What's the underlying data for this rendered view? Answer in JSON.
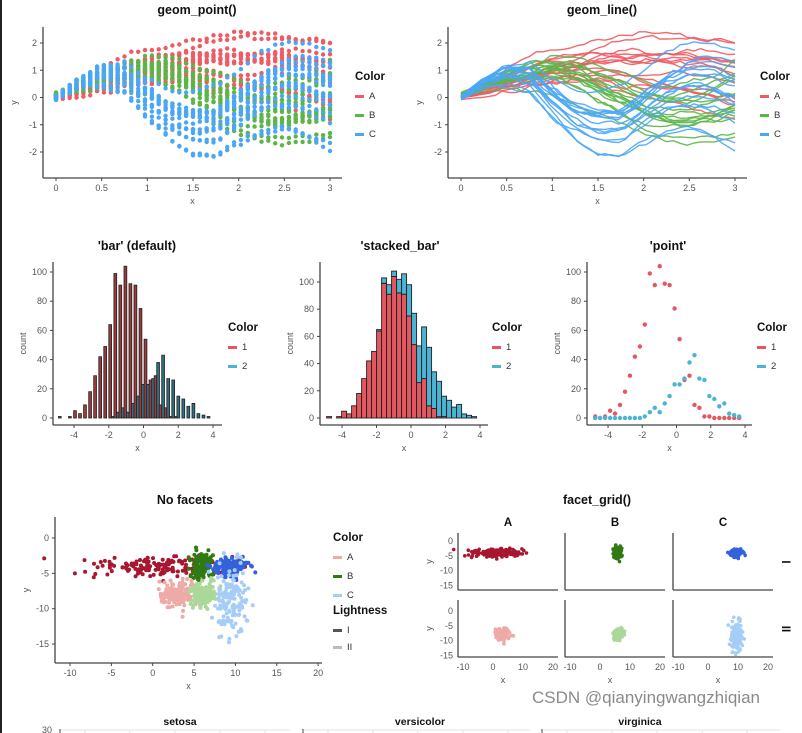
{
  "watermark": "CSDN @qianyingwangzhiqian",
  "colors": {
    "A": "#ef5a63",
    "B": "#5cb548",
    "C": "#4aa6f7",
    "hist1": "#e45760",
    "hist2": "#4bb3d3",
    "A_I": "#a8162f",
    "B_I": "#2f7a12",
    "C_I": "#3461dc",
    "A_II": "#eeaaa6",
    "B_II": "#a9d899",
    "C_II": "#a6cdf7"
  },
  "chart_data": [
    {
      "type": "scatter",
      "title": "geom_point()",
      "xlabel": "x",
      "ylabel": "y",
      "xlim": [
        -0.15,
        3.15
      ],
      "ylim": [
        -2.9,
        2.6
      ],
      "x_ticks": [
        "0",
        "0.5",
        "1",
        "1.5",
        "2",
        "2.5",
        "3"
      ],
      "y_ticks": [
        "-2",
        "-1",
        "0",
        "1",
        "2"
      ],
      "legend": {
        "title": "Color",
        "entries": [
          "A",
          "B",
          "C"
        ],
        "position": "right"
      },
      "grid": false,
      "x_step": 0.075,
      "lines_per_group": 15,
      "series": [
        {
          "name": "A",
          "trend_x": [
            0,
            0.25,
            0.5,
            0.75,
            1,
            1.25,
            1.5,
            1.75,
            2,
            2.25,
            2.5,
            2.75,
            3
          ],
          "trend_y": [
            0,
            0.2,
            0.4,
            0.6,
            0.8,
            0.9,
            1.0,
            1.0,
            0.9,
            0.8,
            0.7,
            0.6,
            0.4
          ]
        },
        {
          "name": "B",
          "trend_x": [
            0,
            0.25,
            0.5,
            0.75,
            1,
            1.25,
            1.5,
            1.75,
            2,
            2.25,
            2.5,
            2.75,
            3
          ],
          "trend_y": [
            0.1,
            0.4,
            0.7,
            0.9,
            1.0,
            0.8,
            0.4,
            0.0,
            -0.4,
            -0.6,
            -0.6,
            -0.5,
            -0.2
          ]
        },
        {
          "name": "C",
          "trend_x": [
            0,
            0.25,
            0.5,
            0.75,
            1,
            1.25,
            1.5,
            1.75,
            2,
            2.25,
            2.5,
            2.75,
            3
          ],
          "trend_y": [
            0,
            0.6,
            0.9,
            0.8,
            0.0,
            -0.7,
            -1.0,
            -1.0,
            -0.4,
            0.2,
            0.5,
            0.4,
            0.1
          ]
        }
      ]
    },
    {
      "type": "line",
      "title": "geom_line()",
      "xlabel": "x",
      "ylabel": "y",
      "xlim": [
        -0.15,
        3.15
      ],
      "ylim": [
        -2.9,
        2.6
      ],
      "x_ticks": [
        "0",
        "0.5",
        "1",
        "1.5",
        "2",
        "2.5",
        "3"
      ],
      "y_ticks": [
        "-2",
        "-1",
        "0",
        "1",
        "2"
      ],
      "legend": {
        "title": "Color",
        "entries": [
          "A",
          "B",
          "C"
        ],
        "position": "right"
      },
      "grid": false,
      "note_same_data_as": "geom_point()"
    },
    {
      "type": "bar",
      "title": "'bar' (default)",
      "xlabel": "x",
      "ylabel": "count",
      "xlim": [
        -5.2,
        4.2
      ],
      "ylim": [
        0,
        110
      ],
      "x_ticks": [
        "-4",
        "-2",
        "0",
        "2",
        "4"
      ],
      "y_ticks": [
        "0",
        "20",
        "40",
        "60",
        "80",
        "100"
      ],
      "legend": {
        "title": "Color",
        "entries": [
          "1",
          "2"
        ],
        "position": "right"
      },
      "bin_centers": [
        -4.75,
        -4.46,
        -4.17,
        -3.88,
        -3.59,
        -3.3,
        -3.01,
        -2.72,
        -2.43,
        -2.14,
        -1.85,
        -1.56,
        -1.27,
        -0.98,
        -0.69,
        -0.4,
        -0.11,
        0.18,
        0.47,
        0.76,
        1.05,
        1.34,
        1.63,
        1.92,
        2.21,
        2.5,
        2.79,
        3.08,
        3.37,
        3.66
      ],
      "series": [
        {
          "name": "1",
          "values": [
            1,
            0,
            1,
            5,
            3,
            9,
            18,
            29,
            42,
            49,
            64,
            99,
            91,
            104,
            92,
            91,
            75,
            54,
            26,
            29,
            9,
            7,
            1,
            1,
            0,
            0,
            0,
            0,
            0,
            0
          ]
        },
        {
          "name": "2",
          "values": [
            0,
            0,
            0,
            0,
            0,
            0,
            0,
            0,
            0,
            0,
            1,
            4,
            7,
            4,
            10,
            15,
            23,
            23,
            27,
            38,
            43,
            27,
            26,
            15,
            13,
            8,
            10,
            3,
            2,
            1
          ]
        }
      ]
    },
    {
      "type": "bar",
      "title": "'stacked_bar'",
      "xlabel": "x",
      "ylabel": "count",
      "xlim": [
        -5.2,
        4.2
      ],
      "ylim": [
        0,
        113
      ],
      "x_ticks": [
        "-4",
        "-2",
        "0",
        "2",
        "4"
      ],
      "y_ticks": [
        "0",
        "20",
        "40",
        "60",
        "80",
        "100"
      ],
      "legend": {
        "title": "Color",
        "entries": [
          "1",
          "2"
        ],
        "position": "right"
      },
      "stacked": true
    },
    {
      "type": "scatter",
      "title": "'point'",
      "xlabel": "x",
      "ylabel": "count",
      "xlim": [
        -5.2,
        4.2
      ],
      "ylim": [
        0,
        110
      ],
      "x_ticks": [
        "-4",
        "-2",
        "0",
        "2",
        "4"
      ],
      "y_ticks": [
        "0",
        "20",
        "40",
        "60",
        "80",
        "100"
      ],
      "legend": {
        "title": "Color",
        "entries": [
          "1",
          "2"
        ],
        "position": "right"
      }
    },
    {
      "type": "scatter",
      "title": "No facets",
      "xlabel": "x",
      "ylabel": "y",
      "xlim": [
        -12,
        21
      ],
      "ylim": [
        -17,
        2.5
      ],
      "x_ticks": [
        "-10",
        "-5",
        "0",
        "5",
        "10",
        "15",
        "20"
      ],
      "y_ticks": [
        "0",
        "-5",
        "-10",
        "-15"
      ],
      "legend": {
        "title": "Color",
        "entries": [
          "A",
          "B",
          "C"
        ],
        "title2": "Lightness",
        "entries2": [
          "I",
          "II"
        ],
        "position": "right"
      },
      "points_per_group": 150,
      "series": [
        {
          "color": "A",
          "lightness": "I",
          "center": [
            0,
            -4
          ],
          "sd": [
            4.5,
            0.8
          ]
        },
        {
          "color": "B",
          "lightness": "I",
          "center": [
            6,
            -4
          ],
          "sd": [
            0.7,
            1.0
          ]
        },
        {
          "color": "C",
          "lightness": "I",
          "center": [
            9.5,
            -4
          ],
          "sd": [
            1.0,
            0.6
          ]
        },
        {
          "color": "A",
          "lightness": "II",
          "center": [
            3,
            -8
          ],
          "sd": [
            1.1,
            0.9
          ]
        },
        {
          "color": "B",
          "lightness": "II",
          "center": [
            6,
            -8
          ],
          "sd": [
            0.8,
            0.8
          ]
        },
        {
          "color": "C",
          "lightness": "II",
          "center": [
            9.5,
            -9
          ],
          "sd": [
            1.0,
            2.6
          ]
        }
      ]
    },
    {
      "type": "scatter",
      "title": "facet_grid()",
      "xlabel": "x",
      "ylabel": "y",
      "xlim": [
        -12,
        21
      ],
      "ylim": [
        -17,
        2.5
      ],
      "x_ticks": [
        "-10",
        "0",
        "10",
        "20"
      ],
      "y_ticks": [
        "0",
        "-5",
        "-10",
        "-15"
      ],
      "col_labels": [
        "A",
        "B",
        "C"
      ],
      "row_labels": [
        "I",
        "II"
      ],
      "note_same_data_as": "No facets"
    },
    {
      "type": "scatter",
      "panel_titles": [
        "setosa",
        "versicolor",
        "virginica"
      ],
      "y_ticks": [
        "30"
      ],
      "grid": true
    }
  ]
}
